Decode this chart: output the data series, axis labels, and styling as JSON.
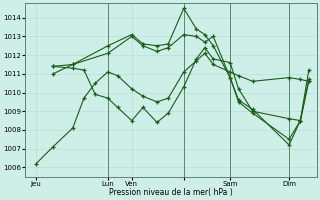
{
  "bg_color": "#ceeee8",
  "grid_color": "#b8ddd8",
  "line_color": "#1a5c1a",
  "xlabel": "Pression niveau de la mer( hPa )",
  "ylim": [
    1005.5,
    1014.8
  ],
  "yticks": [
    1006,
    1007,
    1008,
    1009,
    1010,
    1011,
    1012,
    1013,
    1014
  ],
  "figsize": [
    3.2,
    2.0
  ],
  "dpi": 100,
  "vlines": [
    0.285,
    0.555,
    0.72,
    0.93
  ],
  "xtick_pos": [
    0.03,
    0.285,
    0.37,
    0.555,
    0.72,
    0.93
  ],
  "xtick_labels": [
    "Jeu",
    "Lun",
    "Ven",
    "",
    "Sam",
    "Dim"
  ],
  "series1": {
    "x": [
      0.03,
      0.09,
      0.16,
      0.2,
      0.24,
      0.285,
      0.32,
      0.37,
      0.41,
      0.46,
      0.5,
      0.555,
      0.6,
      0.63,
      0.66,
      0.72,
      0.75,
      0.8,
      0.93,
      0.97,
      1.0
    ],
    "y": [
      1006.2,
      1007.1,
      1008.1,
      1009.7,
      1010.5,
      1011.1,
      1010.9,
      1010.2,
      1009.8,
      1009.5,
      1009.7,
      1011.1,
      1011.7,
      1012.1,
      1011.5,
      1011.1,
      1010.9,
      1010.6,
      1010.8,
      1010.7,
      1010.6
    ]
  },
  "series2": {
    "x": [
      0.09,
      0.16,
      0.2,
      0.24,
      0.285,
      0.32,
      0.37,
      0.41,
      0.46,
      0.5,
      0.555,
      0.6,
      0.63,
      0.66,
      0.72,
      0.75,
      0.8,
      0.93,
      0.97,
      1.0
    ],
    "y": [
      1011.4,
      1011.3,
      1011.2,
      1009.9,
      1009.7,
      1009.2,
      1008.5,
      1009.2,
      1008.4,
      1008.9,
      1010.3,
      1011.8,
      1012.4,
      1011.8,
      1011.6,
      1010.2,
      1009.0,
      1008.6,
      1008.5,
      1011.2
    ]
  },
  "series3": {
    "x": [
      0.09,
      0.16,
      0.285,
      0.37,
      0.41,
      0.46,
      0.5,
      0.555,
      0.6,
      0.63,
      0.66,
      0.72,
      0.75,
      0.8,
      0.93,
      0.97,
      1.0
    ],
    "y": [
      1011.4,
      1011.5,
      1012.5,
      1013.1,
      1012.6,
      1012.5,
      1012.6,
      1014.5,
      1013.4,
      1013.1,
      1012.5,
      1010.8,
      1009.5,
      1008.9,
      1007.5,
      1008.5,
      1010.7
    ]
  },
  "series4": {
    "x": [
      0.09,
      0.16,
      0.285,
      0.37,
      0.41,
      0.46,
      0.5,
      0.555,
      0.6,
      0.63,
      0.66,
      0.72,
      0.75,
      0.8,
      0.93,
      0.97,
      1.0
    ],
    "y": [
      1011.0,
      1011.5,
      1012.1,
      1013.0,
      1012.5,
      1012.2,
      1012.4,
      1013.1,
      1013.0,
      1012.7,
      1013.0,
      1010.8,
      1009.6,
      1009.1,
      1007.2,
      1008.5,
      1010.6
    ]
  }
}
